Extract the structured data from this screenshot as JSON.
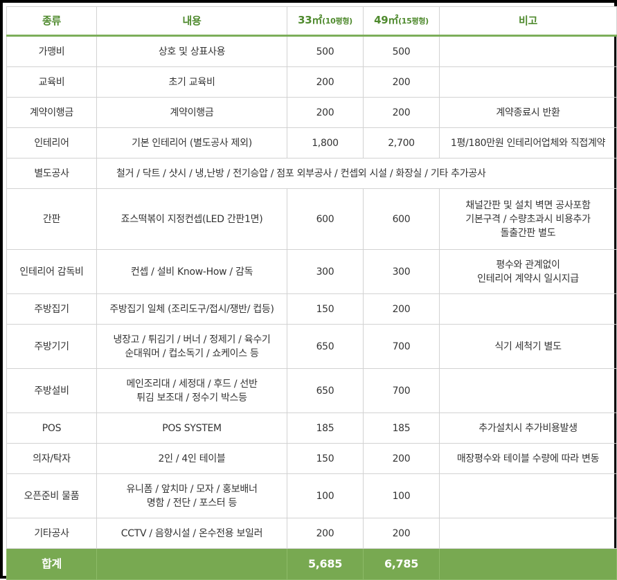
{
  "headers": {
    "type": "종류",
    "content": "내용",
    "size1_main": "33㎡",
    "size1_sub": "(10평형)",
    "size2_main": "49㎡",
    "size2_sub": "(15평형)",
    "note": "비고"
  },
  "rows": [
    {
      "type": "가맹비",
      "content": [
        "상호 및 상표사용"
      ],
      "v1": "500",
      "v2": "500",
      "note": []
    },
    {
      "type": "교육비",
      "content": [
        "초기 교육비"
      ],
      "v1": "200",
      "v2": "200",
      "note": []
    },
    {
      "type": "계약이행금",
      "content": [
        "계약이행금"
      ],
      "v1": "200",
      "v2": "200",
      "note": [
        "계약종료시 반환"
      ]
    },
    {
      "type": "인테리어",
      "content": [
        "기본 인테리어 (별도공사 제외)"
      ],
      "v1": "1,800",
      "v2": "2,700",
      "note": [
        "1평/180만원 인테리어업체와 직접계약"
      ]
    },
    {
      "type": "별도공사",
      "content": [
        "철거 / 닥트 / 샷시 / 냉,난방 / 전기승압 / 점포 외부공사 / 컨셉외 시설 / 화장실 / 기타 추가공사"
      ],
      "v1": "",
      "v2": "",
      "note": []
    },
    {
      "type": "간판",
      "content": [
        "죠스떡볶이 지정컨셉(LED 간판1면)"
      ],
      "v1": "600",
      "v2": "600",
      "note": [
        "채널간판 및 설치 벽면 공사포함",
        "기본구격 / 수량초과시 비용추가",
        "돌출간판 별도"
      ]
    },
    {
      "type": "인테리어 감독비",
      "content": [
        "컨셉 / 설비 Know-How  / 감독"
      ],
      "v1": "300",
      "v2": "300",
      "note": [
        "평수와 관계없이",
        "인테리어 계약시 일시지급"
      ]
    },
    {
      "type": "주방집기",
      "content": [
        "주방집기 일체 (조리도구/접시/쟁반/ 컵등)"
      ],
      "v1": "150",
      "v2": "200",
      "note": []
    },
    {
      "type": "주방기기",
      "content": [
        "냉장고 / 튀김기 / 버너 / 정제기 / 육수기",
        "순대워머 / 컵소독기 / 쇼케이스 등"
      ],
      "v1": "650",
      "v2": "700",
      "note": [
        "식기 세척기 별도"
      ]
    },
    {
      "type": "주방설비",
      "content": [
        "메인조리대 / 세정대 / 후드 / 선반",
        "튀김 보조대 / 정수기 박스등"
      ],
      "v1": "650",
      "v2": "700",
      "note": []
    },
    {
      "type": "POS",
      "content": [
        "POS SYSTEM"
      ],
      "v1": "185",
      "v2": "185",
      "note": [
        "추가설치시 추가비용발생"
      ]
    },
    {
      "type": "의자/탁자",
      "content": [
        "2인 / 4인 테이블"
      ],
      "v1": "150",
      "v2": "200",
      "note": [
        "매장평수와 테이블 수량에 따라 변동"
      ]
    },
    {
      "type": "오픈준비 물품",
      "content": [
        "유니폼 / 앞치마 / 모자 / 홍보배너",
        "명함 / 전단 / 포스터 등"
      ],
      "v1": "100",
      "v2": "100",
      "note": []
    },
    {
      "type": "기타공사",
      "content": [
        "CCTV / 음향시설 / 온수전용 보일러"
      ],
      "v1": "200",
      "v2": "200",
      "note": []
    }
  ],
  "total": {
    "label": "합계",
    "v1": "5,685",
    "v2": "6,785"
  },
  "colors": {
    "header_text": "#4f8a2e",
    "header_rule": "#7cae5a",
    "total_bg": "#78a951",
    "grid": "#d2d2d2"
  }
}
